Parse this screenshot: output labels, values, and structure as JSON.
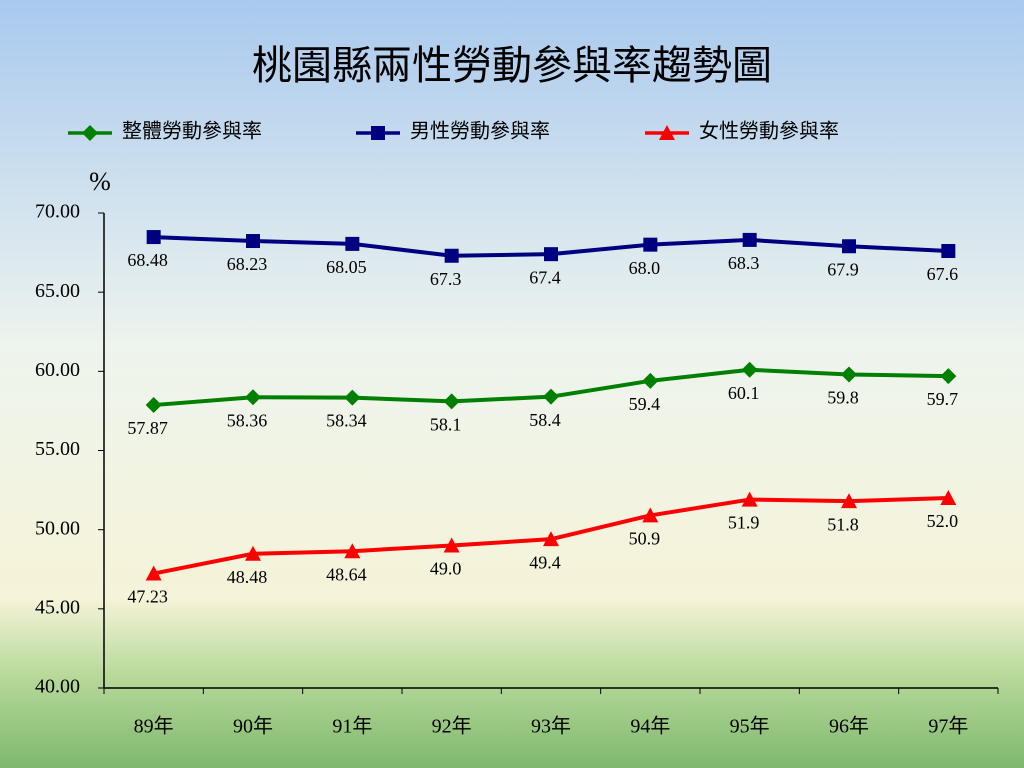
{
  "chart_data": {
    "type": "line",
    "title": "桃園縣兩性勞動參與率趨勢圖",
    "y_label": "%",
    "categories": [
      "89年",
      "90年",
      "91年",
      "92年",
      "93年",
      "94年",
      "95年",
      "96年",
      "97年"
    ],
    "series": [
      {
        "name": "整體勞動參與率",
        "color": "#008000",
        "marker": "diamond",
        "values": [
          57.87,
          58.36,
          58.34,
          58.1,
          58.4,
          59.4,
          60.1,
          59.8,
          59.7
        ],
        "value_labels": [
          "57.87",
          "58.36",
          "58.34",
          "58.1",
          "58.4",
          "59.4",
          "60.1",
          "59.8",
          "59.7"
        ]
      },
      {
        "name": "男性勞動參與率",
        "color": "#000080",
        "marker": "square",
        "values": [
          68.48,
          68.23,
          68.05,
          67.3,
          67.4,
          68.0,
          68.3,
          67.9,
          67.6
        ],
        "value_labels": [
          "68.48",
          "68.23",
          "68.05",
          "67.3",
          "67.4",
          "68.0",
          "68.3",
          "67.9",
          "67.6"
        ]
      },
      {
        "name": "女性勞動參與率",
        "color": "#ff0000",
        "marker": "triangle",
        "values": [
          47.23,
          48.48,
          48.64,
          49.0,
          49.4,
          50.9,
          51.9,
          51.8,
          52.0
        ],
        "value_labels": [
          "47.23",
          "48.48",
          "48.64",
          "49.0",
          "49.4",
          "50.9",
          "51.9",
          "51.8",
          "52.0"
        ]
      }
    ],
    "ylim": [
      40,
      70
    ],
    "yticks": [
      {
        "value": 40,
        "label": "40.00"
      },
      {
        "value": 45,
        "label": "45.00"
      },
      {
        "value": 50,
        "label": "50.00"
      },
      {
        "value": 55,
        "label": "55.00"
      },
      {
        "value": 60,
        "label": "60.00"
      },
      {
        "value": 65,
        "label": "65.00"
      },
      {
        "value": 70,
        "label": "70.00"
      }
    ],
    "grid": false
  }
}
